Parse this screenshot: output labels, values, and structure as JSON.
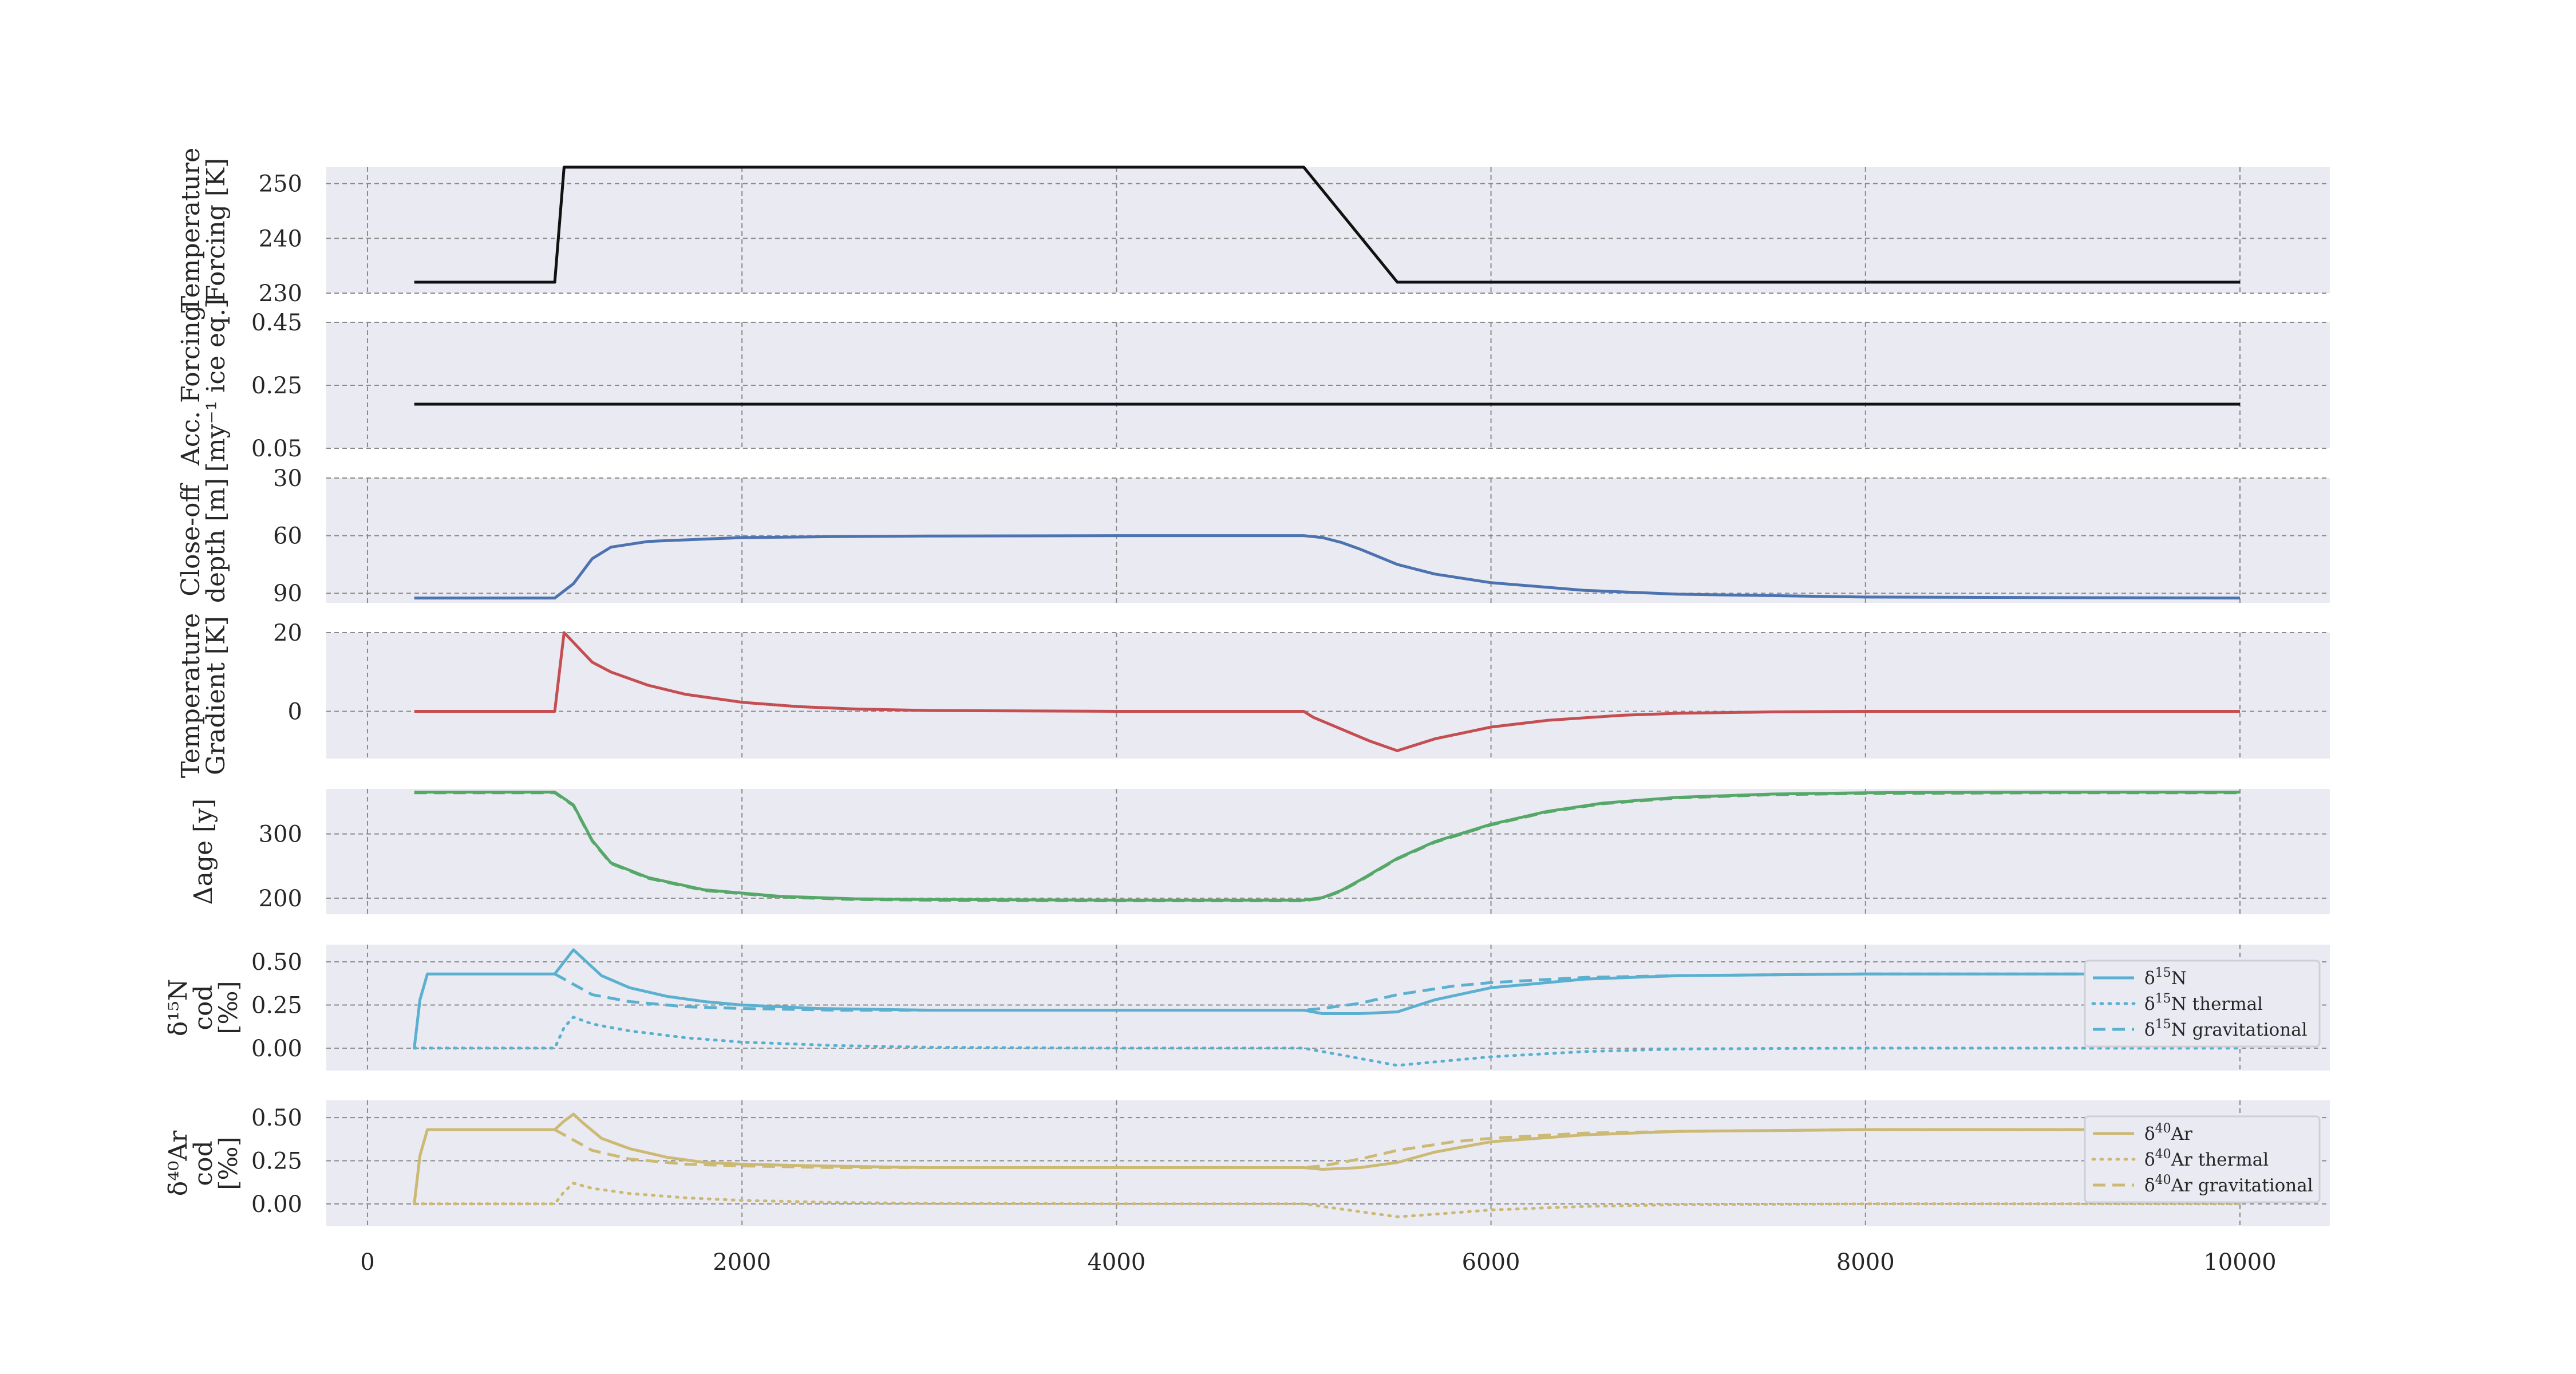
{
  "chart_data": [
    {
      "id": "temperature",
      "type": "line",
      "ylabel": [
        "Temperature",
        "Forcing [K]"
      ],
      "ylim": [
        230,
        253
      ],
      "yticks": [
        230,
        240,
        250
      ],
      "xlim": [
        -220,
        10480
      ],
      "grid": true,
      "series": [
        {
          "color": "#111111",
          "style": "solid",
          "x": [
            250,
            1000,
            1050,
            5000,
            5500,
            10000
          ],
          "y": [
            232.0,
            232.0,
            253.0,
            253.0,
            232.0,
            232.0
          ]
        }
      ]
    },
    {
      "id": "accumulation",
      "type": "line",
      "ylabel": [
        "Acc. Forcing",
        "[my⁻¹ ice eq.]"
      ],
      "ylim": [
        0.05,
        0.45
      ],
      "yticks": [
        0.05,
        0.25,
        0.45
      ],
      "xlim": [
        -220,
        10480
      ],
      "grid": true,
      "series": [
        {
          "color": "#111111",
          "style": "solid",
          "x": [
            250,
            10000
          ],
          "y": [
            0.19,
            0.19
          ]
        }
      ]
    },
    {
      "id": "close-off-depth",
      "type": "line",
      "ylabel": [
        "Close-off",
        "depth [m]"
      ],
      "ylim": [
        95,
        30
      ],
      "yticks": [
        30,
        60,
        90
      ],
      "xlim": [
        -220,
        10480
      ],
      "grid": true,
      "series": [
        {
          "color": "#4c72b0",
          "style": "solid",
          "x": [
            250,
            1000,
            1100,
            1200,
            1300,
            1500,
            2000,
            2500,
            3000,
            3500,
            4000,
            4500,
            5000,
            5100,
            5200,
            5300,
            5400,
            5500,
            5700,
            6000,
            6500,
            7000,
            8000,
            9000,
            10000
          ],
          "y": [
            92.5,
            92.5,
            85,
            72,
            66,
            63,
            61,
            60.5,
            60.2,
            60.1,
            60,
            60,
            60,
            61,
            63.5,
            67,
            71,
            75,
            80,
            84.5,
            88.5,
            90.5,
            92,
            92.3,
            92.5
          ]
        }
      ]
    },
    {
      "id": "temperature-gradient",
      "type": "line",
      "ylabel": [
        "Temperature",
        "Gradient [K]"
      ],
      "ylim": [
        -12,
        20
      ],
      "yticks": [
        0,
        20
      ],
      "xlim": [
        -220,
        10480
      ],
      "grid": true,
      "series": [
        {
          "color": "#c44e52",
          "style": "solid",
          "x": [
            250,
            1000,
            1050,
            1100,
            1200,
            1300,
            1500,
            1700,
            2000,
            2300,
            2600,
            3000,
            4000,
            5000,
            5050,
            5200,
            5350,
            5500,
            5700,
            6000,
            6300,
            6700,
            7000,
            7500,
            8000,
            10000
          ],
          "y": [
            0,
            0,
            20,
            17.5,
            12.5,
            10,
            6.6,
            4.3,
            2.3,
            1.2,
            0.6,
            0.2,
            0,
            0,
            -1.5,
            -4.5,
            -7.5,
            -10,
            -7,
            -4,
            -2.3,
            -1,
            -0.5,
            -0.15,
            0,
            0
          ]
        }
      ]
    },
    {
      "id": "delta-age",
      "type": "line",
      "ylabel": [
        "Δage [y]"
      ],
      "ylim": [
        175,
        370
      ],
      "yticks": [
        200,
        300
      ],
      "xlim": [
        -220,
        10480
      ],
      "grid": true,
      "series": [
        {
          "color": "#55a868",
          "style": "solid",
          "x": [
            250,
            1000,
            1100,
            1200,
            1300,
            1500,
            1800,
            2200,
            2600,
            3000,
            4000,
            5000,
            5100,
            5200,
            5300,
            5500,
            5700,
            6000,
            6300,
            6600,
            7000,
            7500,
            8000,
            9000,
            10000
          ],
          "y": [
            365,
            365,
            345,
            290,
            255,
            232,
            213,
            203,
            199,
            198,
            197,
            197,
            201,
            212,
            228,
            262,
            288,
            315,
            335,
            348,
            357,
            362,
            364,
            365,
            365
          ]
        },
        {
          "color": "#55a868",
          "style": "dashed",
          "x": [
            250,
            1000,
            1100,
            1200,
            1300,
            1500,
            1800,
            2200,
            2600,
            3000,
            4000,
            5000,
            5100,
            5200,
            5300,
            5500,
            5700,
            6000,
            6300,
            6600,
            7000,
            7500,
            8000,
            9000,
            10000
          ],
          "y": [
            364,
            364,
            344,
            289,
            254,
            231,
            212,
            202,
            198,
            197,
            196,
            196,
            200,
            211,
            227,
            261,
            287,
            314,
            334,
            347,
            356,
            361,
            363,
            364,
            364
          ]
        }
      ]
    },
    {
      "id": "d15n",
      "type": "line",
      "ylabel": [
        "δ¹⁵N",
        "cod",
        "[‰]"
      ],
      "ylim": [
        -0.13,
        0.6
      ],
      "yticks": [
        0.0,
        0.25,
        0.5
      ],
      "xlim": [
        -220,
        10480
      ],
      "grid": true,
      "legend_position": "right",
      "series": [
        {
          "name": "δ15N",
          "legend_label": {
            "delta": "δ",
            "sup": "15",
            "text": "N"
          },
          "color": "#5bb0d0",
          "style": "solid",
          "x": [
            250,
            280,
            320,
            400,
            1000,
            1050,
            1100,
            1150,
            1250,
            1400,
            1600,
            1800,
            2000,
            2400,
            3000,
            4000,
            5000,
            5100,
            5300,
            5500,
            5700,
            6000,
            6500,
            7000,
            8000,
            9000,
            10000
          ],
          "y": [
            0,
            0.28,
            0.43,
            0.43,
            0.43,
            0.5,
            0.57,
            0.52,
            0.42,
            0.35,
            0.3,
            0.27,
            0.25,
            0.23,
            0.22,
            0.22,
            0.22,
            0.2,
            0.2,
            0.21,
            0.28,
            0.35,
            0.4,
            0.42,
            0.43,
            0.43,
            0.43
          ]
        },
        {
          "name": "δ15N thermal",
          "legend_label": {
            "delta": "δ",
            "sup": "15",
            "text": "N thermal"
          },
          "color": "#5bb0d0",
          "style": "dotted",
          "x": [
            250,
            1000,
            1050,
            1100,
            1200,
            1400,
            1700,
            2000,
            2500,
            3000,
            4000,
            5000,
            5100,
            5300,
            5500,
            5700,
            6000,
            6500,
            7000,
            8000,
            10000
          ],
          "y": [
            0,
            0,
            0.12,
            0.18,
            0.14,
            0.1,
            0.06,
            0.035,
            0.015,
            0.005,
            0,
            0,
            -0.02,
            -0.06,
            -0.1,
            -0.08,
            -0.05,
            -0.02,
            -0.005,
            0,
            0
          ]
        },
        {
          "name": "δ15N gravitational",
          "legend_label": {
            "delta": "δ",
            "sup": "15",
            "text": "N gravitational"
          },
          "color": "#5bb0d0",
          "style": "dashed",
          "x": [
            1000,
            1100,
            1200,
            1400,
            1700,
            2000,
            2500,
            3000,
            4000,
            5000,
            5100,
            5300,
            5500,
            5800,
            6000,
            6500,
            7000,
            8000,
            9000,
            10000
          ],
          "y": [
            0.43,
            0.37,
            0.31,
            0.27,
            0.24,
            0.23,
            0.22,
            0.22,
            0.22,
            0.22,
            0.23,
            0.26,
            0.31,
            0.36,
            0.38,
            0.41,
            0.42,
            0.43,
            0.43,
            0.43
          ]
        }
      ]
    },
    {
      "id": "d40ar",
      "type": "line",
      "ylabel": [
        "δ⁴⁰Ar",
        "cod",
        "[‰]"
      ],
      "ylim": [
        -0.13,
        0.6
      ],
      "yticks": [
        0.0,
        0.25,
        0.5
      ],
      "xlim": [
        -220,
        10480
      ],
      "grid": true,
      "legend_position": "right",
      "series": [
        {
          "name": "δ40Ar",
          "legend_label": {
            "delta": "δ",
            "sup": "40",
            "text": "Ar"
          },
          "color": "#ccb974",
          "style": "solid",
          "x": [
            250,
            280,
            320,
            400,
            1000,
            1050,
            1100,
            1150,
            1250,
            1400,
            1600,
            1800,
            2000,
            2400,
            3000,
            4000,
            5000,
            5100,
            5300,
            5500,
            5700,
            6000,
            6500,
            7000,
            8000,
            9000,
            10000
          ],
          "y": [
            0,
            0.28,
            0.43,
            0.43,
            0.43,
            0.48,
            0.52,
            0.47,
            0.38,
            0.32,
            0.27,
            0.24,
            0.23,
            0.22,
            0.21,
            0.21,
            0.21,
            0.2,
            0.21,
            0.24,
            0.3,
            0.36,
            0.4,
            0.42,
            0.43,
            0.43,
            0.43
          ]
        },
        {
          "name": "δ40Ar thermal",
          "legend_label": {
            "delta": "δ",
            "sup": "40",
            "text": "Ar thermal"
          },
          "color": "#ccb974",
          "style": "dotted",
          "x": [
            250,
            1000,
            1050,
            1100,
            1200,
            1400,
            1700,
            2000,
            2500,
            3000,
            4000,
            5000,
            5100,
            5300,
            5500,
            5700,
            6000,
            6500,
            7000,
            8000,
            10000
          ],
          "y": [
            0,
            0,
            0.07,
            0.12,
            0.09,
            0.06,
            0.035,
            0.02,
            0.008,
            0.003,
            0,
            0,
            -0.015,
            -0.045,
            -0.075,
            -0.06,
            -0.035,
            -0.015,
            -0.005,
            0,
            0
          ]
        },
        {
          "name": "δ40Ar gravitational",
          "legend_label": {
            "delta": "δ",
            "sup": "40",
            "text": "Ar gravitational"
          },
          "color": "#ccb974",
          "style": "dashed",
          "x": [
            1000,
            1100,
            1200,
            1400,
            1700,
            2000,
            2500,
            3000,
            4000,
            5000,
            5100,
            5300,
            5500,
            5800,
            6000,
            6500,
            7000,
            8000,
            9000,
            10000
          ],
          "y": [
            0.43,
            0.37,
            0.31,
            0.26,
            0.23,
            0.22,
            0.21,
            0.21,
            0.21,
            0.21,
            0.22,
            0.26,
            0.31,
            0.36,
            0.38,
            0.41,
            0.42,
            0.43,
            0.43,
            0.43
          ]
        }
      ]
    }
  ],
  "x_axis": {
    "ticks": [
      0,
      2000,
      4000,
      6000,
      8000,
      10000
    ],
    "tick_labels": [
      "0",
      "2000",
      "4000",
      "6000",
      "8000",
      "10000"
    ]
  }
}
